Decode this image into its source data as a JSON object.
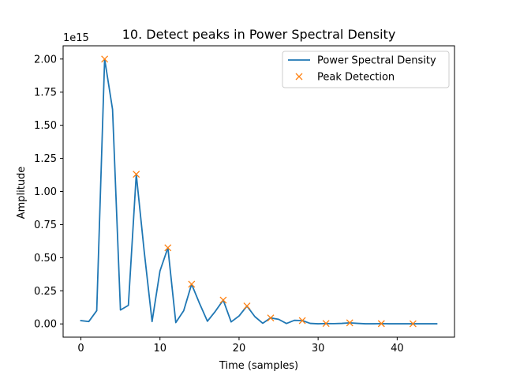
{
  "chart_data": {
    "type": "line",
    "title": "10. Detect peaks in Power Spectral Density",
    "xlabel": "Time (samples)",
    "ylabel": "Amplitude",
    "y_offset_text": "1e15",
    "xlim": [
      -2.25,
      47.25
    ],
    "ylim": [
      -0.1,
      2.1
    ],
    "x_ticks": [
      0,
      10,
      20,
      30,
      40
    ],
    "x_tick_labels": [
      "0",
      "10",
      "20",
      "30",
      "40"
    ],
    "y_ticks": [
      0.0,
      0.25,
      0.5,
      0.75,
      1.0,
      1.25,
      1.5,
      1.75,
      2.0
    ],
    "y_tick_labels": [
      "0.00",
      "0.25",
      "0.50",
      "0.75",
      "1.00",
      "1.25",
      "1.50",
      "1.75",
      "2.00"
    ],
    "grid": false,
    "legend_position": "top-right",
    "series": [
      {
        "name": "Power Spectral Density",
        "kind": "line",
        "color": "#1f77b4",
        "x": [
          0,
          1,
          2,
          3,
          4,
          5,
          6,
          7,
          8,
          9,
          10,
          11,
          12,
          13,
          14,
          15,
          16,
          17,
          18,
          19,
          20,
          21,
          22,
          23,
          24,
          25,
          26,
          27,
          28,
          29,
          30,
          31,
          32,
          33,
          34,
          35,
          36,
          37,
          38,
          39,
          40,
          41,
          42,
          43,
          44,
          45
        ],
        "y": [
          0.025,
          0.018,
          0.1,
          2.0,
          1.62,
          0.105,
          0.14,
          1.13,
          0.55,
          0.018,
          0.4,
          0.575,
          0.01,
          0.1,
          0.3,
          0.155,
          0.02,
          0.095,
          0.18,
          0.015,
          0.06,
          0.135,
          0.055,
          0.005,
          0.045,
          0.035,
          0.003,
          0.027,
          0.025,
          0.004,
          0.001,
          0.003,
          0.002,
          0.004,
          0.008,
          0.004,
          0.001,
          0.001,
          0.002,
          0.001,
          0.001,
          0.001,
          0.001,
          0.001,
          0.001,
          0.001
        ]
      },
      {
        "name": "Peak Detection",
        "kind": "markers",
        "marker": "x",
        "color": "#ff7f0e",
        "x": [
          3,
          7,
          11,
          14,
          18,
          21,
          24,
          28,
          31,
          34,
          38,
          42
        ],
        "y": [
          2.0,
          1.13,
          0.575,
          0.3,
          0.18,
          0.135,
          0.045,
          0.025,
          0.003,
          0.008,
          0.002,
          0.001
        ]
      }
    ]
  }
}
